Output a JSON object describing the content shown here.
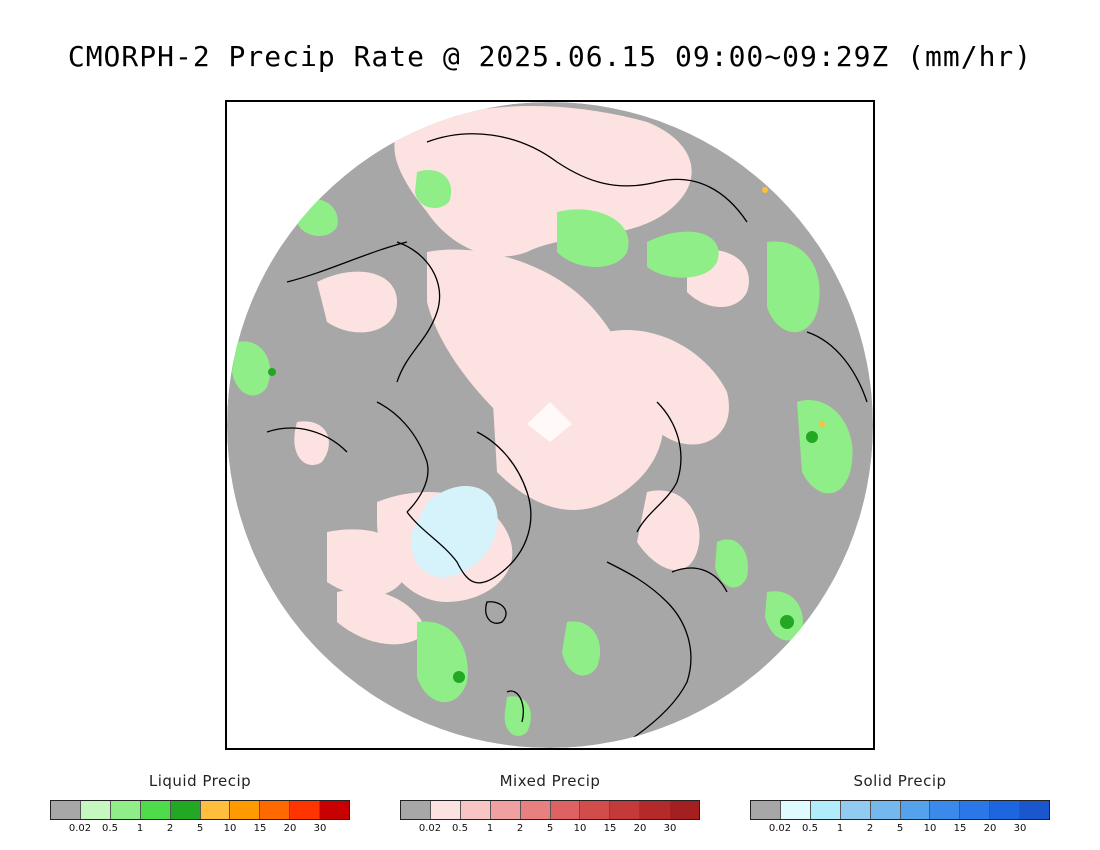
{
  "title": "CMORPH-2 Precip Rate @ 2025.06.15 09:00~09:29Z (mm/hr)",
  "map": {
    "projection": "polar-stereographic-north",
    "no_data_color": "#ffffff",
    "zero_precip_color": "#a7a7a7",
    "coastline_color": "#000000"
  },
  "legends": [
    {
      "title": "Liquid Precip",
      "colors": [
        "#a7a7a7",
        "#c6f7c0",
        "#90ee88",
        "#4fdc4a",
        "#22a822",
        "#ffbe3c",
        "#ff9a00",
        "#ff6a00",
        "#ff3500",
        "#c80000"
      ],
      "ticks": [
        "0.02",
        "0.5",
        "1",
        "2",
        "5",
        "10",
        "15",
        "20",
        "30"
      ]
    },
    {
      "title": "Mixed Precip",
      "colors": [
        "#a7a7a7",
        "#fde2e2",
        "#f8c4c4",
        "#f0a0a0",
        "#e88080",
        "#df6262",
        "#d24c4c",
        "#c43a3a",
        "#b42a2a",
        "#a42020"
      ],
      "ticks": [
        "0.02",
        "0.5",
        "1",
        "2",
        "5",
        "10",
        "15",
        "20",
        "30"
      ]
    },
    {
      "title": "Solid Precip",
      "colors": [
        "#a7a7a7",
        "#e0fbff",
        "#b0ecfa",
        "#92cbf2",
        "#74b8ee",
        "#55a2ec",
        "#3a8aec",
        "#2a78e8",
        "#1e66e0",
        "#1a56cc"
      ],
      "ticks": [
        "0.02",
        "0.5",
        "1",
        "2",
        "5",
        "10",
        "15",
        "20",
        "30"
      ]
    }
  ]
}
